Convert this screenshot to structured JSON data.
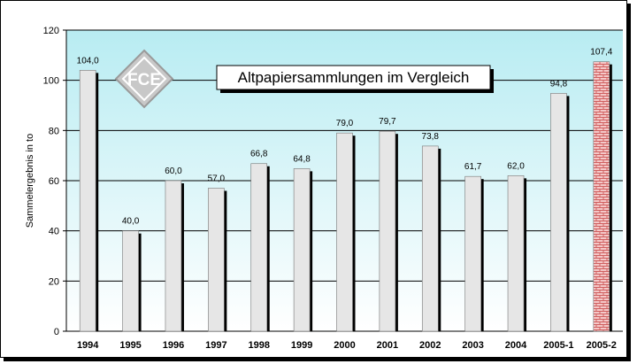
{
  "chart_data": {
    "type": "bar",
    "title": "Altpapiersammlungen im Vergleich",
    "xlabel": "",
    "ylabel": "Sammelergebnis in to",
    "ylim": [
      0,
      120
    ],
    "yticks": [
      "0",
      "20",
      "40",
      "60",
      "80",
      "100",
      "120"
    ],
    "grid": true,
    "categories": [
      "1994",
      "1995",
      "1996",
      "1997",
      "1998",
      "1999",
      "2000",
      "2001",
      "2002",
      "2003",
      "2004",
      "2005-1",
      "2005-2"
    ],
    "values": [
      104.0,
      40.0,
      60.0,
      57.0,
      66.8,
      64.8,
      79.0,
      79.7,
      73.8,
      61.7,
      62.0,
      94.8,
      107.4
    ],
    "value_labels": [
      "104,0",
      "40,0",
      "60,0",
      "57,0",
      "66,8",
      "64,8",
      "79,0",
      "79,7",
      "73,8",
      "61,7",
      "62,0",
      "94,8",
      "107,4"
    ],
    "highlight_index": 12,
    "colors": {
      "bar": "#e6e6e6",
      "bar_shadow": "#000000",
      "highlight_bar": "#f4c8c8",
      "highlight_brick": "#d06060",
      "plot_top": "#b8ecf2",
      "plot_bottom": "#ffffff",
      "grid": "#000000"
    }
  },
  "logo": {
    "text": "FCE",
    "icon": "club-logo-icon"
  }
}
